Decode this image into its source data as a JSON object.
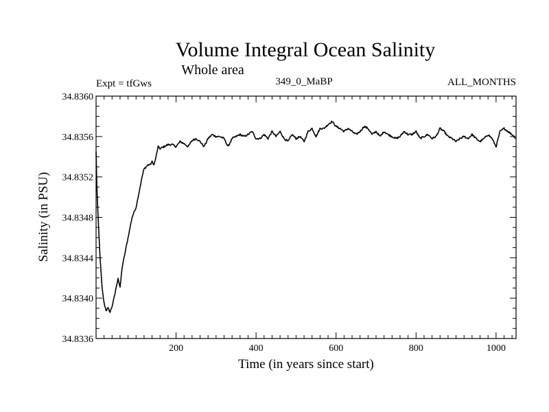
{
  "chart_data": {
    "type": "line",
    "title": "Volume Integral Ocean Salinity",
    "subtitle": "Whole area",
    "left_note": "Expt = tfGws",
    "center_note": "349_0_MaBP",
    "right_note": "ALL_MONTHS",
    "xlabel": "Time (in years since start)",
    "ylabel": "Salinity (in PSU)",
    "xlim": [
      0,
      1050
    ],
    "ylim": [
      34.8336,
      34.836
    ],
    "xticks": [
      {
        "value": 200,
        "label": "200"
      },
      {
        "value": 400,
        "label": "400"
      },
      {
        "value": 600,
        "label": "600"
      },
      {
        "value": 800,
        "label": "800"
      },
      {
        "value": 1000,
        "label": "1000"
      }
    ],
    "yticks": [
      {
        "value": 34.8336,
        "label": "34.8336"
      },
      {
        "value": 34.834,
        "label": "34.8340"
      },
      {
        "value": 34.8344,
        "label": "34.8344"
      },
      {
        "value": 34.8348,
        "label": "34.8348"
      },
      {
        "value": 34.8352,
        "label": "34.8352"
      },
      {
        "value": 34.8356,
        "label": "34.8356"
      },
      {
        "value": 34.836,
        "label": "34.8360"
      }
    ],
    "series": [
      {
        "name": "Salinity",
        "x": [
          0,
          2,
          5,
          10,
          15,
          20,
          25,
          30,
          35,
          40,
          45,
          50,
          55,
          60,
          65,
          70,
          75,
          80,
          85,
          90,
          95,
          100,
          105,
          110,
          115,
          120,
          125,
          130,
          135,
          140,
          145,
          150,
          155,
          160,
          170,
          180,
          190,
          200,
          210,
          220,
          230,
          240,
          250,
          260,
          270,
          280,
          290,
          300,
          310,
          320,
          330,
          340,
          350,
          360,
          370,
          380,
          390,
          400,
          410,
          420,
          430,
          440,
          450,
          460,
          470,
          480,
          490,
          500,
          510,
          520,
          530,
          540,
          550,
          560,
          570,
          580,
          590,
          600,
          610,
          620,
          630,
          640,
          650,
          660,
          670,
          680,
          690,
          700,
          710,
          720,
          730,
          740,
          750,
          760,
          770,
          780,
          790,
          800,
          810,
          820,
          830,
          840,
          850,
          860,
          870,
          880,
          890,
          900,
          910,
          920,
          930,
          940,
          950,
          960,
          970,
          980,
          990,
          1000,
          1010,
          1020,
          1030,
          1040,
          1050
        ],
        "y": [
          34.83545,
          34.8351,
          34.8348,
          34.8344,
          34.8341,
          34.83395,
          34.83388,
          34.8339,
          34.83386,
          34.83392,
          34.834,
          34.8341,
          34.8342,
          34.8341,
          34.8343,
          34.8344,
          34.8345,
          34.8346,
          34.8347,
          34.8348,
          34.83485,
          34.8349,
          34.835,
          34.8351,
          34.8352,
          34.83528,
          34.8353,
          34.83532,
          34.83532,
          34.83535,
          34.83532,
          34.8354,
          34.8355,
          34.83548,
          34.8355,
          34.83552,
          34.83552,
          34.8355,
          34.83555,
          34.83553,
          34.8355,
          34.83556,
          34.83558,
          34.83555,
          34.8355,
          34.83558,
          34.83562,
          34.8356,
          34.8356,
          34.83558,
          34.8355,
          34.83558,
          34.8356,
          34.83562,
          34.8356,
          34.83562,
          34.83565,
          34.83558,
          34.83558,
          34.83562,
          34.83558,
          34.83565,
          34.8356,
          34.83565,
          34.83558,
          34.83555,
          34.83562,
          34.83558,
          34.8356,
          34.83555,
          34.83565,
          34.83568,
          34.8356,
          34.83568,
          34.83568,
          34.83572,
          34.83575,
          34.8357,
          34.83568,
          34.83565,
          34.83568,
          34.83565,
          34.83562,
          34.83565,
          34.8357,
          34.83568,
          34.83562,
          34.83565,
          34.8356,
          34.83565,
          34.83562,
          34.8356,
          34.83558,
          34.8356,
          34.83565,
          34.83562,
          34.83562,
          34.83565,
          34.83558,
          34.8356,
          34.83562,
          34.83558,
          34.8356,
          34.83568,
          34.83565,
          34.8356,
          34.83558,
          34.83555,
          34.83558,
          34.8356,
          34.83558,
          34.83562,
          34.83558,
          34.83555,
          34.83558,
          34.83562,
          34.83558,
          34.8355,
          34.83565,
          34.83568,
          34.83565,
          34.83562,
          34.83558
        ]
      }
    ]
  }
}
